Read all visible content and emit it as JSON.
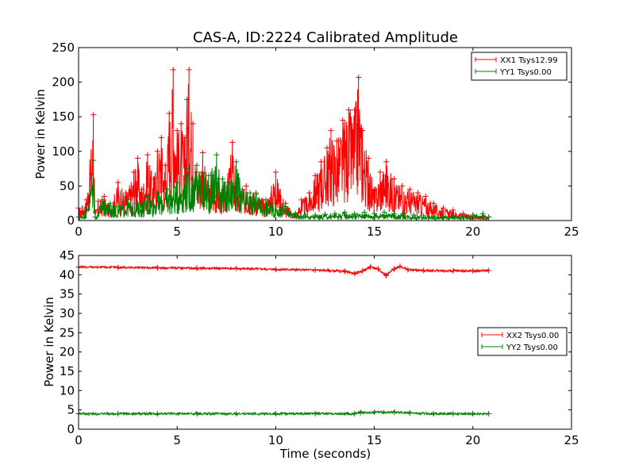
{
  "chart_data": [
    {
      "type": "line",
      "title": "CAS-A, ID:2224 Calibrated Amplitude",
      "xlabel": "",
      "ylabel": "Power in Kelvin",
      "xlim": [
        0,
        25
      ],
      "ylim": [
        0,
        250
      ],
      "xticks": [
        0,
        5,
        10,
        15,
        20,
        25
      ],
      "yticks": [
        0,
        50,
        100,
        150,
        200,
        250
      ],
      "legend_position": "top-right",
      "marker": "+",
      "series": [
        {
          "name": "XX1 Tsys12.99",
          "color": "#ff0000",
          "points": [
            [
              0.0,
              18
            ],
            [
              0.4,
              30
            ],
            [
              0.75,
              153
            ],
            [
              0.85,
              12
            ],
            [
              1.0,
              28
            ],
            [
              1.3,
              35
            ],
            [
              1.6,
              22
            ],
            [
              2.0,
              55
            ],
            [
              2.4,
              40
            ],
            [
              2.8,
              70
            ],
            [
              3.0,
              90
            ],
            [
              3.2,
              45
            ],
            [
              3.5,
              95
            ],
            [
              3.8,
              60
            ],
            [
              4.0,
              100
            ],
            [
              4.2,
              120
            ],
            [
              4.4,
              80
            ],
            [
              4.6,
              155
            ],
            [
              4.8,
              218
            ],
            [
              5.0,
              130
            ],
            [
              5.2,
              140
            ],
            [
              5.4,
              120
            ],
            [
              5.5,
              175
            ],
            [
              5.6,
              218
            ],
            [
              5.8,
              140
            ],
            [
              6.0,
              70
            ],
            [
              6.3,
              98
            ],
            [
              6.6,
              50
            ],
            [
              7.0,
              60
            ],
            [
              7.4,
              40
            ],
            [
              7.8,
              113
            ],
            [
              8.0,
              35
            ],
            [
              8.5,
              50
            ],
            [
              9.0,
              40
            ],
            [
              9.5,
              30
            ],
            [
              10.0,
              70
            ],
            [
              10.5,
              25
            ],
            [
              11.0,
              10
            ],
            [
              11.3,
              30
            ],
            [
              11.7,
              40
            ],
            [
              12.0,
              65
            ],
            [
              12.3,
              85
            ],
            [
              12.6,
              105
            ],
            [
              12.8,
              130
            ],
            [
              13.1,
              115
            ],
            [
              13.4,
              145
            ],
            [
              13.7,
              160
            ],
            [
              14.0,
              160
            ],
            [
              14.2,
              207
            ],
            [
              14.4,
              130
            ],
            [
              14.7,
              90
            ],
            [
              15.0,
              45
            ],
            [
              15.3,
              70
            ],
            [
              15.6,
              85
            ],
            [
              16.0,
              60
            ],
            [
              16.4,
              50
            ],
            [
              16.8,
              45
            ],
            [
              17.2,
              40
            ],
            [
              17.6,
              35
            ],
            [
              18.0,
              25
            ],
            [
              18.5,
              18
            ],
            [
              19.0,
              15
            ],
            [
              19.5,
              10
            ],
            [
              20.0,
              8
            ],
            [
              20.5,
              6
            ],
            [
              20.8,
              5
            ]
          ]
        },
        {
          "name": "YY1 Tsys0.00",
          "color": "#008000",
          "points": [
            [
              0.0,
              5
            ],
            [
              0.4,
              15
            ],
            [
              0.75,
              87
            ],
            [
              0.85,
              5
            ],
            [
              1.2,
              30
            ],
            [
              1.6,
              25
            ],
            [
              2.0,
              20
            ],
            [
              2.5,
              30
            ],
            [
              3.0,
              25
            ],
            [
              3.5,
              35
            ],
            [
              4.0,
              40
            ],
            [
              4.5,
              45
            ],
            [
              5.0,
              55
            ],
            [
              5.5,
              75
            ],
            [
              5.8,
              60
            ],
            [
              6.0,
              80
            ],
            [
              6.3,
              70
            ],
            [
              6.6,
              65
            ],
            [
              7.0,
              95
            ],
            [
              7.3,
              60
            ],
            [
              7.6,
              55
            ],
            [
              8.0,
              85
            ],
            [
              8.3,
              45
            ],
            [
              8.7,
              40
            ],
            [
              9.0,
              38
            ],
            [
              9.5,
              30
            ],
            [
              10.0,
              25
            ],
            [
              10.5,
              20
            ],
            [
              11.0,
              10
            ],
            [
              11.5,
              8
            ],
            [
              12.0,
              8
            ],
            [
              12.5,
              9
            ],
            [
              13.0,
              10
            ],
            [
              13.5,
              12
            ],
            [
              14.0,
              10
            ],
            [
              14.5,
              12
            ],
            [
              15.0,
              10
            ],
            [
              15.5,
              12
            ],
            [
              16.0,
              10
            ],
            [
              16.5,
              10
            ],
            [
              17.0,
              8
            ],
            [
              17.5,
              7
            ],
            [
              18.0,
              6
            ],
            [
              18.5,
              6
            ],
            [
              19.0,
              6
            ],
            [
              19.5,
              6
            ],
            [
              20.0,
              8
            ],
            [
              20.5,
              10
            ],
            [
              20.8,
              5
            ]
          ]
        }
      ]
    },
    {
      "type": "line",
      "title": "",
      "xlabel": "Time (seconds)",
      "ylabel": "Power in Kelvin",
      "xlim": [
        0,
        25
      ],
      "ylim": [
        0,
        45
      ],
      "xticks": [
        0,
        5,
        10,
        15,
        20,
        25
      ],
      "yticks": [
        0,
        5,
        10,
        15,
        20,
        25,
        30,
        35,
        40,
        45
      ],
      "legend_position": "center-right",
      "marker": "+",
      "series": [
        {
          "name": "XX2 Tsys0.00",
          "color": "#ff0000",
          "points": [
            [
              0.0,
              42
            ],
            [
              2.0,
              41.9
            ],
            [
              4.0,
              41.8
            ],
            [
              6.0,
              41.7
            ],
            [
              8.0,
              41.6
            ],
            [
              10.0,
              41.4
            ],
            [
              12.0,
              41.2
            ],
            [
              13.5,
              40.9
            ],
            [
              14.0,
              40.3
            ],
            [
              14.4,
              41.0
            ],
            [
              14.8,
              42.0
            ],
            [
              15.2,
              41.5
            ],
            [
              15.6,
              39.8
            ],
            [
              16.0,
              41.5
            ],
            [
              16.3,
              42.2
            ],
            [
              16.7,
              41.3
            ],
            [
              17.5,
              41.1
            ],
            [
              19.0,
              41.0
            ],
            [
              20.0,
              41.0
            ],
            [
              20.8,
              41.1
            ]
          ]
        },
        {
          "name": "YY2 Tsys0.00",
          "color": "#008000",
          "points": [
            [
              0.0,
              4.0
            ],
            [
              2.0,
              4.0
            ],
            [
              4.0,
              4.0
            ],
            [
              6.0,
              4.0
            ],
            [
              8.0,
              4.0
            ],
            [
              10.0,
              4.0
            ],
            [
              12.0,
              4.0
            ],
            [
              14.0,
              4.0
            ],
            [
              14.3,
              4.3
            ],
            [
              15.0,
              4.4
            ],
            [
              16.0,
              4.4
            ],
            [
              16.8,
              4.2
            ],
            [
              18.0,
              4.0
            ],
            [
              19.0,
              4.0
            ],
            [
              20.0,
              4.0
            ],
            [
              20.8,
              4.0
            ]
          ]
        }
      ]
    }
  ]
}
